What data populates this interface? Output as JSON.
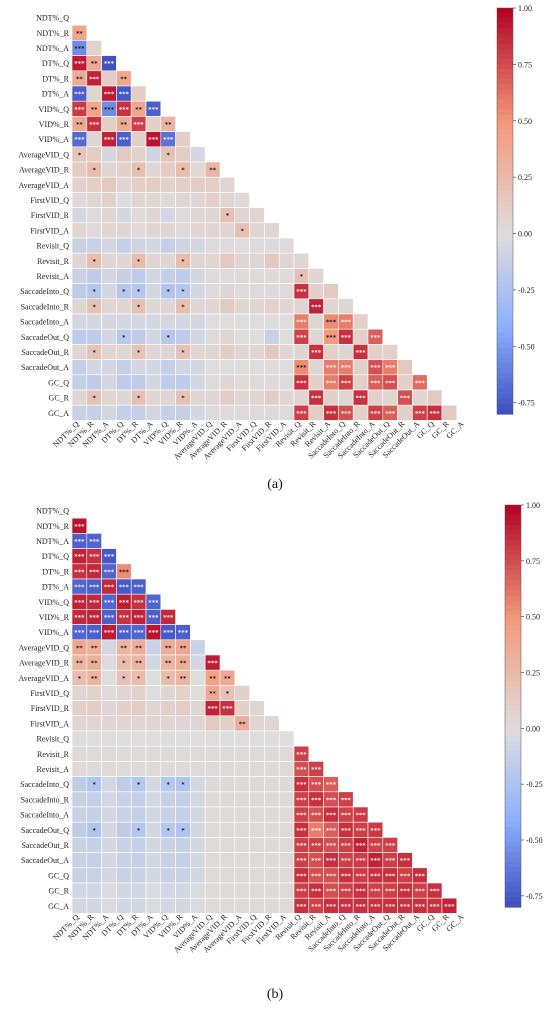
{
  "chart_data": [
    {
      "type": "heatmap",
      "panel_label": "(a)",
      "variables": [
        "NDT%_Q",
        "NDT%_R",
        "NDT%_A",
        "DT%_Q",
        "DT%_R",
        "DT%_A",
        "VID%_Q",
        "VID%_R",
        "VID%_A",
        "AverageVID_Q",
        "AverageVID_R",
        "AverageVID_A",
        "FirstVID_Q",
        "FirstVID_R",
        "FirstVID_A",
        "Revisit_Q",
        "Revisit_R",
        "Revisit_A",
        "SaccadeInto_Q",
        "SaccadeInto_R",
        "SaccadeInto_A",
        "SaccadeOut_Q",
        "SaccadeOut_R",
        "SaccadeOut_A",
        "GC_Q",
        "GC_R",
        "GC_A"
      ],
      "lower_triangle": true,
      "colorbar": {
        "min": -0.8,
        "max": 1.0,
        "ticks": [
          "1.00",
          "0.75",
          "0.50",
          "0.25",
          "0.00",
          "-0.25",
          "-0.50",
          "-0.75"
        ],
        "colormap": "coolwarm"
      },
      "matrix": [
        [],
        [
          0.42
        ],
        [
          -0.55,
          0.08
        ],
        [
          0.92,
          0.38,
          -0.78
        ],
        [
          0.38,
          0.9,
          0.12,
          0.4
        ],
        [
          -0.72,
          0.06,
          0.92,
          -0.75,
          0.12
        ],
        [
          0.82,
          0.42,
          -0.55,
          0.85,
          0.4,
          -0.72
        ],
        [
          0.4,
          0.85,
          0.1,
          0.38,
          0.8,
          0.1,
          0.3
        ],
        [
          -0.68,
          0.05,
          0.9,
          -0.72,
          0.1,
          0.95,
          -0.65,
          0.12
        ],
        [
          0.18,
          0.12,
          -0.05,
          0.15,
          0.08,
          -0.08,
          0.2,
          0.12,
          -0.05
        ],
        [
          0.12,
          0.25,
          0.05,
          0.1,
          0.22,
          0.05,
          0.12,
          0.25,
          0.04,
          0.3
        ],
        [
          0.08,
          0.1,
          0.15,
          0.05,
          0.1,
          0.12,
          0.08,
          0.1,
          0.12,
          0.1,
          0.05
        ],
        [
          0.02,
          0.05,
          0.08,
          0.0,
          0.05,
          0.05,
          0.02,
          0.05,
          0.05,
          0.1,
          0.05,
          0.02
        ],
        [
          -0.05,
          0.02,
          0.05,
          -0.05,
          0.02,
          0.05,
          -0.05,
          0.02,
          0.05,
          0.05,
          0.2,
          0.05,
          0.05
        ],
        [
          0.05,
          0.02,
          0.05,
          0.05,
          0.02,
          0.05,
          0.05,
          0.02,
          0.05,
          0.05,
          0.05,
          0.22,
          0.05,
          0.05
        ],
        [
          -0.1,
          -0.1,
          -0.05,
          -0.12,
          -0.08,
          -0.05,
          -0.12,
          -0.08,
          -0.05,
          0.02,
          0.02,
          0.0,
          0.02,
          0.02,
          0.02
        ],
        [
          0.05,
          0.25,
          0.05,
          0.05,
          0.25,
          0.05,
          0.05,
          0.25,
          0.05,
          0.05,
          0.15,
          0.05,
          0.05,
          0.15,
          0.05,
          0.05
        ],
        [
          -0.1,
          -0.15,
          -0.05,
          -0.12,
          -0.15,
          -0.05,
          -0.12,
          -0.15,
          -0.05,
          0.02,
          0.02,
          0.02,
          0.02,
          0.02,
          0.02,
          0.2,
          0.05
        ],
        [
          -0.15,
          -0.2,
          -0.05,
          -0.2,
          -0.2,
          -0.05,
          -0.22,
          -0.2,
          -0.05,
          0.02,
          0.05,
          0.02,
          0.02,
          0.02,
          0.02,
          0.85,
          0.1,
          0.15
        ],
        [
          0.05,
          0.2,
          0.05,
          0.05,
          0.22,
          0.05,
          0.05,
          0.22,
          0.05,
          0.05,
          0.15,
          0.05,
          0.05,
          0.1,
          0.05,
          0.05,
          0.9,
          0.05,
          0.05
        ],
        [
          -0.05,
          -0.05,
          -0.05,
          -0.05,
          -0.05,
          -0.05,
          -0.05,
          -0.05,
          -0.05,
          0.0,
          0.0,
          0.0,
          0.0,
          0.0,
          0.0,
          0.6,
          0.05,
          0.55,
          0.6,
          0.1
        ],
        [
          -0.15,
          -0.15,
          -0.05,
          -0.18,
          -0.15,
          -0.05,
          -0.2,
          -0.15,
          -0.05,
          0.02,
          0.05,
          0.0,
          0.0,
          -0.1,
          0.0,
          0.8,
          0.05,
          0.5,
          0.85,
          0.1,
          0.7
        ],
        [
          0.05,
          0.2,
          0.05,
          0.05,
          0.2,
          0.05,
          0.05,
          0.2,
          0.05,
          0.05,
          0.12,
          0.05,
          0.05,
          0.15,
          0.05,
          0.05,
          0.85,
          0.1,
          0.05,
          0.85,
          0.1,
          0.1
        ],
        [
          -0.12,
          -0.05,
          -0.05,
          -0.12,
          -0.05,
          -0.05,
          -0.12,
          -0.05,
          -0.05,
          0.0,
          0.0,
          0.0,
          0.0,
          0.0,
          0.0,
          0.55,
          0.05,
          0.6,
          0.6,
          0.1,
          0.75,
          0.6,
          0.15
        ],
        [
          -0.12,
          -0.15,
          -0.05,
          -0.15,
          -0.15,
          -0.05,
          -0.15,
          -0.15,
          -0.05,
          0.02,
          0.05,
          0.02,
          0.02,
          0.02,
          0.02,
          0.85,
          0.1,
          0.6,
          0.8,
          0.1,
          0.7,
          0.75,
          0.1,
          0.65
        ],
        [
          0.05,
          0.2,
          0.05,
          0.05,
          0.2,
          0.05,
          0.05,
          0.2,
          0.05,
          0.05,
          0.12,
          0.05,
          0.05,
          0.12,
          0.05,
          0.05,
          0.85,
          0.1,
          0.05,
          0.85,
          0.1,
          0.05,
          0.75,
          0.05,
          0.15
        ],
        [
          -0.1,
          -0.12,
          -0.05,
          -0.12,
          -0.12,
          -0.05,
          -0.12,
          -0.12,
          -0.05,
          0.02,
          0.02,
          0.02,
          0.02,
          0.02,
          0.02,
          0.8,
          0.12,
          0.85,
          0.75,
          0.1,
          0.8,
          0.7,
          0.1,
          0.8,
          0.85,
          0.15
        ]
      ]
    },
    {
      "type": "heatmap",
      "panel_label": "(b)",
      "variables": [
        "NDT%_Q",
        "NDT%_R",
        "NDT%_A",
        "DT%_Q",
        "DT%_R",
        "DT%_A",
        "VID%_Q",
        "VID%_R",
        "VID%_A",
        "AverageVID_Q",
        "AverageVID_R",
        "AverageVID_A",
        "FirstVID_Q",
        "FirstVID_R",
        "FirstVID_A",
        "Revisit_Q",
        "Revisit_R",
        "Revisit_A",
        "SaccadeInto_Q",
        "SaccadeInto_R",
        "SaccadeInto_A",
        "SaccadeOut_Q",
        "SaccadeOut_R",
        "SaccadeOut_A",
        "GC_Q",
        "GC_R",
        "GC_A"
      ],
      "lower_triangle": true,
      "colorbar": {
        "min": -0.8,
        "max": 1.0,
        "ticks": [
          "1.00",
          "0.75",
          "0.50",
          "0.25",
          "0.00",
          "-0.25",
          "-0.50",
          "-0.75"
        ],
        "colormap": "coolwarm"
      },
      "matrix": [
        [],
        [
          0.95
        ],
        [
          -0.72,
          -0.7
        ],
        [
          0.9,
          0.85,
          -0.75
        ],
        [
          0.85,
          0.88,
          -0.7,
          0.55
        ],
        [
          -0.7,
          -0.72,
          0.88,
          -0.75,
          -0.72
        ],
        [
          0.9,
          0.88,
          -0.7,
          0.92,
          0.85,
          -0.7
        ],
        [
          0.88,
          0.9,
          -0.72,
          0.85,
          0.9,
          -0.72,
          0.88
        ],
        [
          -0.7,
          -0.72,
          0.92,
          -0.72,
          -0.7,
          0.95,
          -0.75,
          -0.72
        ],
        [
          0.4,
          0.35,
          -0.05,
          0.3,
          0.35,
          -0.1,
          0.35,
          0.4,
          -0.1
        ],
        [
          0.3,
          0.35,
          -0.02,
          0.25,
          0.3,
          -0.05,
          0.3,
          0.35,
          -0.05,
          0.92
        ],
        [
          0.25,
          0.3,
          0.0,
          0.2,
          0.25,
          0.0,
          0.25,
          0.3,
          0.0,
          0.45,
          0.4
        ],
        [
          0.05,
          0.08,
          0.02,
          0.05,
          0.08,
          0.0,
          0.05,
          0.08,
          0.0,
          0.4,
          0.2,
          0.1
        ],
        [
          0.1,
          0.12,
          0.05,
          0.1,
          0.12,
          0.05,
          0.1,
          0.12,
          0.05,
          0.9,
          0.85,
          0.1,
          0.05
        ],
        [
          0.05,
          0.05,
          0.05,
          0.05,
          0.05,
          0.05,
          0.05,
          0.05,
          0.05,
          0.15,
          0.1,
          0.35,
          0.05,
          0.05
        ],
        [
          0.0,
          0.0,
          0.0,
          0.0,
          0.0,
          0.0,
          0.0,
          0.0,
          0.0,
          0.0,
          0.0,
          0.0,
          0.0,
          0.0,
          0.0
        ],
        [
          0.02,
          0.02,
          0.02,
          0.02,
          0.02,
          0.02,
          0.02,
          0.02,
          0.02,
          0.02,
          0.02,
          0.02,
          0.02,
          0.02,
          0.02,
          0.8
        ],
        [
          0.02,
          0.02,
          0.02,
          0.02,
          0.02,
          0.02,
          0.02,
          0.02,
          0.02,
          0.02,
          0.02,
          0.02,
          0.02,
          0.02,
          0.02,
          0.75,
          0.8
        ],
        [
          -0.15,
          -0.22,
          -0.05,
          -0.15,
          -0.2,
          -0.05,
          -0.2,
          -0.22,
          -0.05,
          0.02,
          0.02,
          0.02,
          0.02,
          0.02,
          0.02,
          0.85,
          0.75,
          0.7
        ],
        [
          -0.1,
          -0.12,
          -0.05,
          -0.1,
          -0.12,
          -0.05,
          -0.1,
          -0.12,
          -0.05,
          0.02,
          0.02,
          0.02,
          0.02,
          0.02,
          0.02,
          0.8,
          0.85,
          0.75,
          0.8
        ],
        [
          -0.1,
          -0.12,
          -0.05,
          -0.1,
          -0.12,
          -0.05,
          -0.1,
          -0.12,
          -0.05,
          0.02,
          0.02,
          0.02,
          0.02,
          0.02,
          0.02,
          0.8,
          0.75,
          0.85,
          0.8,
          0.82
        ],
        [
          -0.15,
          -0.22,
          -0.05,
          -0.15,
          -0.2,
          -0.05,
          -0.2,
          -0.22,
          -0.05,
          0.02,
          0.02,
          0.02,
          0.02,
          0.02,
          0.02,
          0.85,
          0.6,
          0.7,
          0.85,
          0.8,
          0.82
        ],
        [
          -0.1,
          -0.12,
          -0.05,
          -0.1,
          -0.12,
          -0.05,
          -0.1,
          -0.12,
          -0.05,
          0.02,
          0.02,
          0.02,
          0.02,
          0.02,
          0.02,
          0.8,
          0.8,
          0.75,
          0.8,
          0.9,
          0.8,
          0.8
        ],
        [
          -0.1,
          -0.12,
          -0.05,
          -0.1,
          -0.12,
          -0.05,
          -0.1,
          -0.12,
          -0.05,
          0.02,
          0.02,
          0.02,
          0.02,
          0.02,
          0.02,
          0.8,
          0.75,
          0.85,
          0.8,
          0.82,
          0.9,
          0.8,
          0.85
        ],
        [
          -0.1,
          -0.1,
          -0.05,
          -0.1,
          -0.1,
          -0.05,
          -0.1,
          -0.1,
          -0.05,
          0.02,
          0.02,
          0.02,
          0.02,
          0.02,
          0.02,
          0.85,
          0.75,
          0.75,
          0.85,
          0.82,
          0.85,
          0.85,
          0.8,
          0.85
        ],
        [
          -0.05,
          -0.05,
          -0.02,
          -0.05,
          -0.05,
          -0.02,
          -0.05,
          -0.05,
          -0.02,
          0.02,
          0.02,
          0.02,
          0.02,
          0.02,
          0.02,
          0.8,
          0.85,
          0.75,
          0.8,
          0.85,
          0.8,
          0.8,
          0.85,
          0.8,
          0.85
        ],
        [
          -0.05,
          -0.05,
          -0.02,
          -0.05,
          -0.05,
          -0.02,
          -0.05,
          -0.05,
          -0.02,
          0.02,
          0.02,
          0.02,
          0.02,
          0.02,
          0.02,
          0.85,
          0.8,
          0.85,
          0.85,
          0.85,
          0.85,
          0.85,
          0.85,
          0.85,
          0.85,
          0.9
        ]
      ]
    }
  ]
}
